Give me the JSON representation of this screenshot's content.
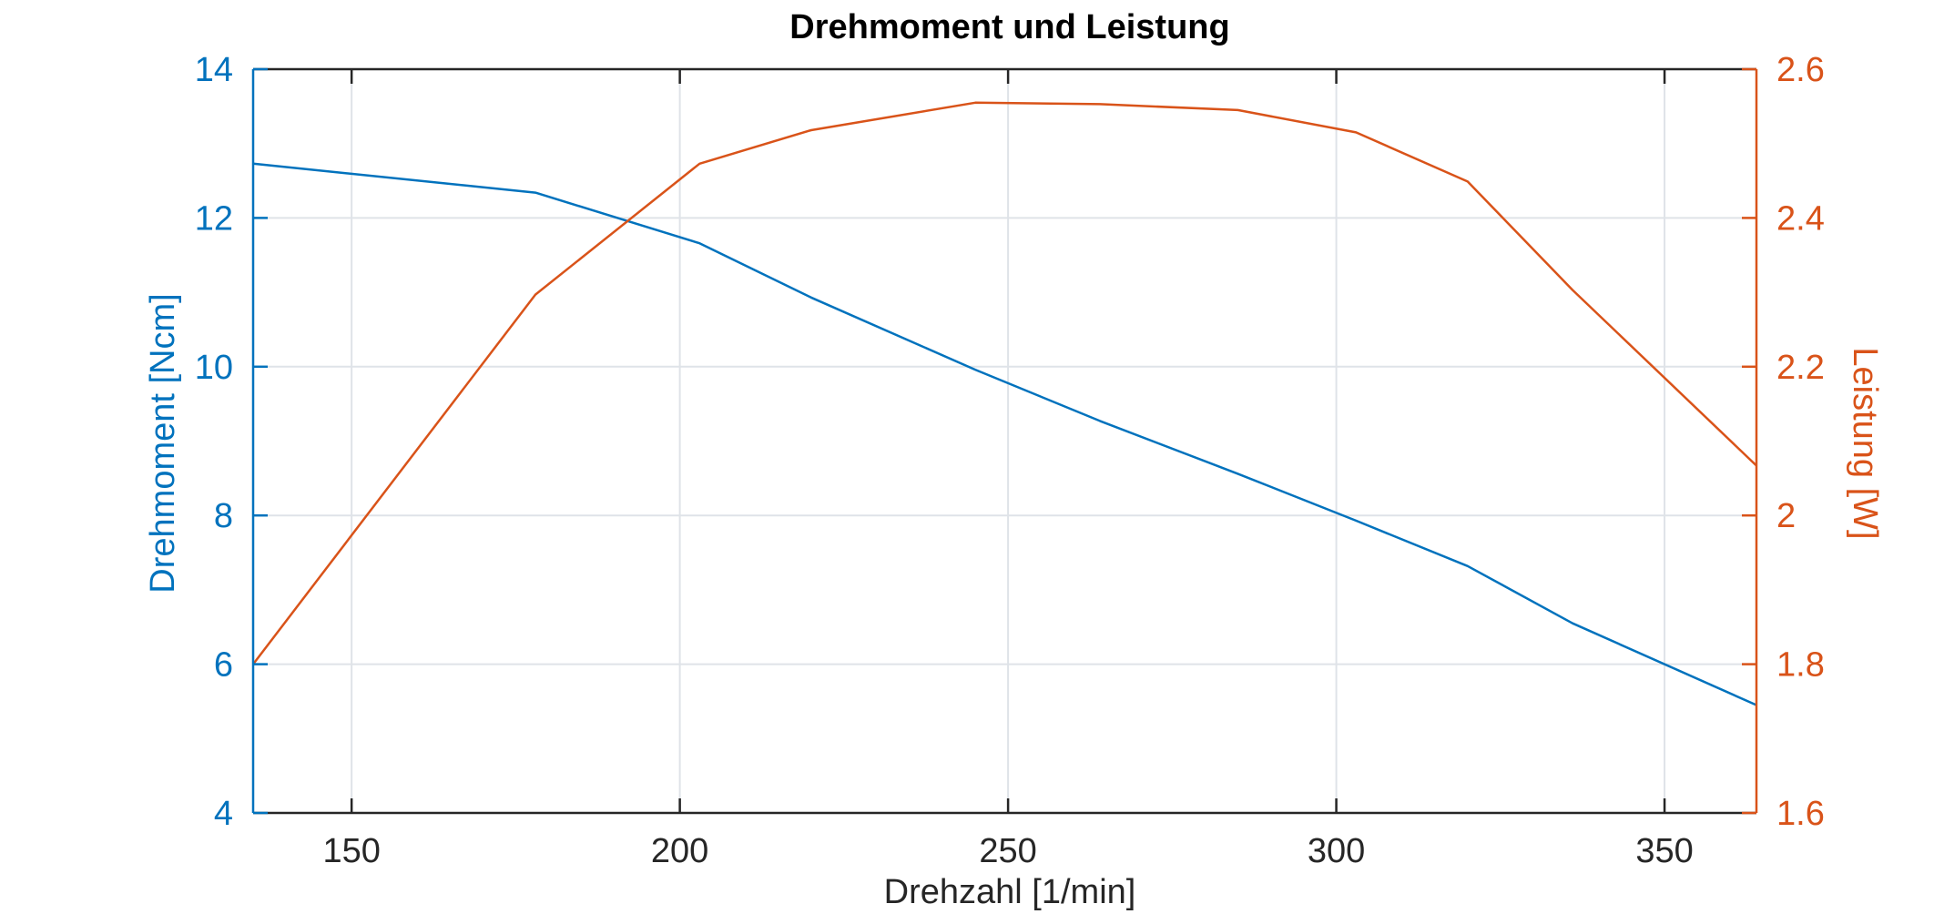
{
  "chart_data": {
    "type": "line",
    "title": "Drehmoment und Leistung",
    "xlabel": "Drehzahl [1/min]",
    "ylabel_left": "Drehmoment [Ncm]",
    "ylabel_right": "Leistung [W]",
    "xlim": [
      135,
      364
    ],
    "ylim_left": [
      4,
      14
    ],
    "ylim_right": [
      1.6,
      2.6
    ],
    "xticks": [
      150,
      200,
      250,
      300,
      350
    ],
    "xtick_labels": [
      "150",
      "200",
      "250",
      "300",
      "350"
    ],
    "yticks_left": [
      4,
      6,
      8,
      10,
      12,
      14
    ],
    "ytick_labels_left": [
      "4",
      "6",
      "8",
      "10",
      "12",
      "14"
    ],
    "yticks_right": [
      1.6,
      1.8,
      2.0,
      2.2,
      2.4,
      2.6
    ],
    "ytick_labels_right": [
      "1.6",
      "1.8",
      "2",
      "2.2",
      "2.4",
      "2.6"
    ],
    "grid": true,
    "colors": {
      "left_axis": "#0072BD",
      "right_axis": "#D95319",
      "grid": "#dfe3e8",
      "box": "#262626"
    },
    "series": [
      {
        "axis": "left",
        "color": "#0072BD",
        "x": [
          135,
          178,
          203,
          220,
          245,
          264,
          285,
          303,
          320,
          336,
          364
        ],
        "y": [
          12.73,
          12.34,
          11.66,
          10.93,
          9.96,
          9.27,
          8.56,
          7.93,
          7.32,
          6.55,
          5.45
        ]
      },
      {
        "axis": "right",
        "color": "#D95319",
        "x": [
          135,
          178,
          203,
          220,
          245,
          264,
          285,
          303,
          320,
          336,
          364
        ],
        "y": [
          1.8,
          2.297,
          2.473,
          2.518,
          2.555,
          2.553,
          2.545,
          2.515,
          2.449,
          2.303,
          2.067
        ]
      }
    ]
  }
}
